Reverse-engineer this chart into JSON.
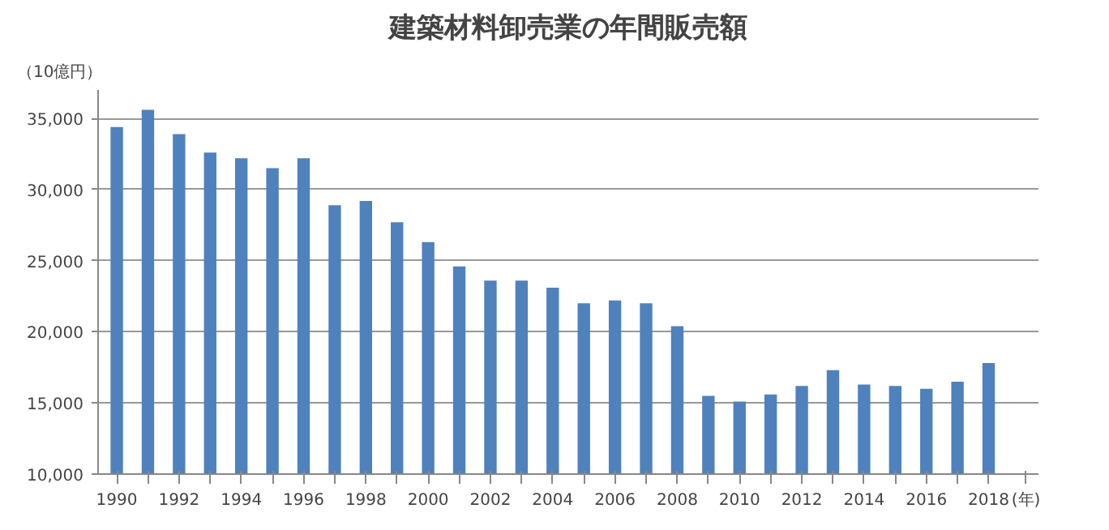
{
  "chart_data": {
    "type": "bar",
    "title": "建築材料卸売業の年間販売額",
    "ylabel": "（10億円）",
    "xlabel": "(年)",
    "categories": [
      "1990",
      null,
      "1992",
      null,
      "1994",
      null,
      "1996",
      null,
      "1998",
      null,
      "2000",
      null,
      "2002",
      null,
      "2004",
      null,
      "2006",
      null,
      "2008",
      null,
      "2010",
      null,
      "2012",
      null,
      "2014",
      null,
      "2016",
      null,
      "2018"
    ],
    "values": [
      34400,
      35600,
      33900,
      32600,
      32200,
      31500,
      32200,
      28900,
      29200,
      27700,
      26300,
      24600,
      23600,
      23600,
      23100,
      22000,
      22200,
      22000,
      20400,
      15500,
      15100,
      15600,
      16200,
      17300,
      16300,
      16200,
      16000,
      16500,
      17800
    ],
    "color": "#4f81bd",
    "ylim": [
      10000,
      37000
    ],
    "yticks": [
      {
        "value": 10000,
        "label": "10,000"
      },
      {
        "value": 15000,
        "label": "15,000"
      },
      {
        "value": 20000,
        "label": "20,000"
      },
      {
        "value": 25000,
        "label": "25,000"
      },
      {
        "value": 30000,
        "label": "30,000"
      },
      {
        "value": 35000,
        "label": "35,000"
      }
    ],
    "grid": "y"
  }
}
